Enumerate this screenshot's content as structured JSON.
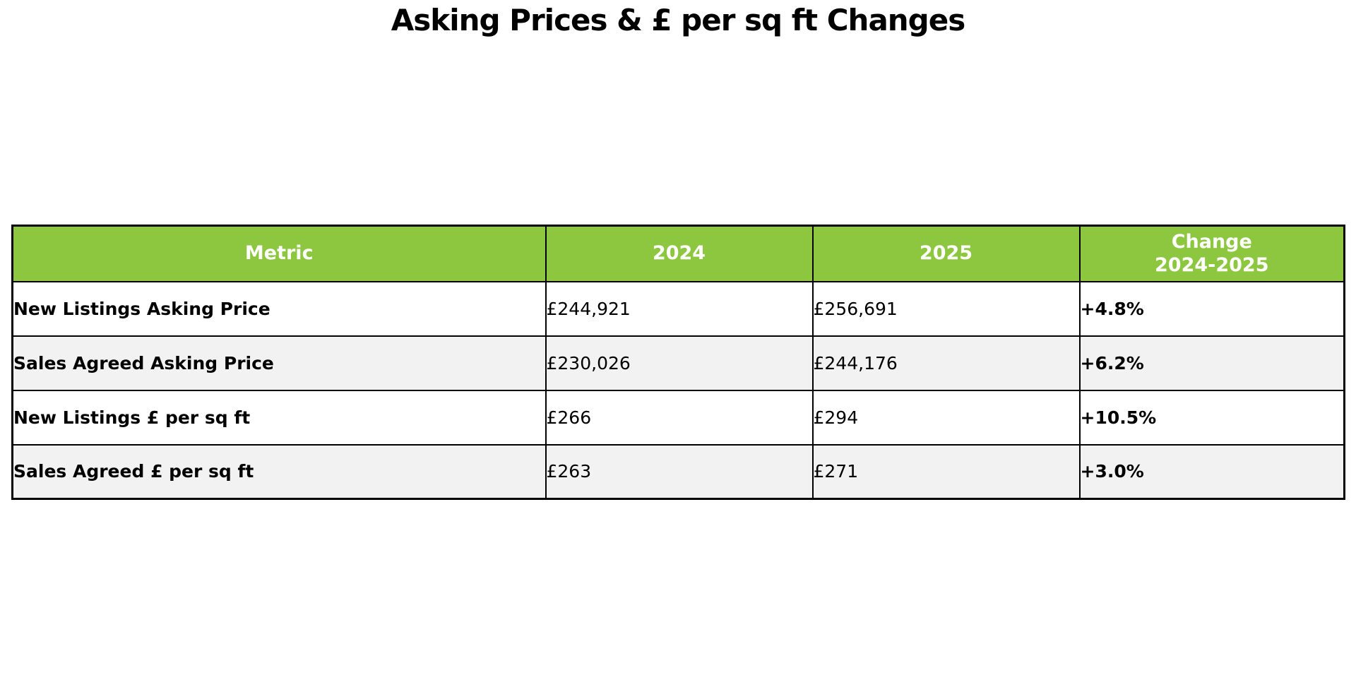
{
  "title": "Asking Prices & £ per sq ft Changes",
  "colors": {
    "header_bg": "#8dc63f",
    "header_text": "#ffffff",
    "change_text": "#0aa37c",
    "row_alt_bg": "#f2f2f2",
    "border": "#000000",
    "body_text": "#000000"
  },
  "chart_data": {
    "type": "table",
    "title": "Asking Prices & £ per sq ft Changes",
    "columns": [
      "Metric",
      "2024",
      "2025",
      "Change\n2024-2025"
    ],
    "rows": [
      [
        "New Listings Asking Price",
        "£244,921",
        "£256,691",
        "+4.8%"
      ],
      [
        "Sales Agreed Asking Price",
        "£230,026",
        "£244,176",
        "+6.2%"
      ],
      [
        "New Listings £ per sq ft",
        "£266",
        "£294",
        "+10.5%"
      ],
      [
        "Sales Agreed £ per sq ft",
        "£263",
        "£271",
        "+3.0%"
      ]
    ],
    "numeric": {
      "metrics": [
        "New Listings Asking Price",
        "Sales Agreed Asking Price",
        "New Listings £ per sq ft",
        "Sales Agreed £ per sq ft"
      ],
      "values_2024": [
        244921,
        230026,
        266,
        263
      ],
      "values_2025": [
        256691,
        244176,
        294,
        271
      ],
      "change_pct": [
        4.8,
        6.2,
        10.5,
        3.0
      ]
    },
    "layout": {
      "header_fill": "#8dc63f",
      "alt_row_fill": "#f2f2f2",
      "change_color": "#0aa37c",
      "grid": "on"
    }
  }
}
